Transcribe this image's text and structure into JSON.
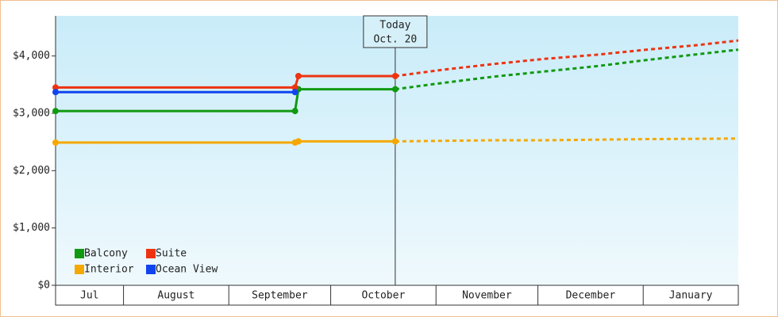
{
  "chart_data": {
    "type": "line",
    "x": [
      11,
      81.5,
      82.5,
      111,
      125,
      140,
      155,
      170,
      185,
      200,
      212
    ],
    "xlim": [
      11,
      212
    ],
    "xticks": [
      31,
      62,
      92,
      123,
      153,
      184
    ],
    "categories": [
      "Jul",
      "August",
      "September",
      "October",
      "November",
      "December",
      "January"
    ],
    "ylim": [
      0,
      4700
    ],
    "yticks": [
      {
        "value": 0,
        "label": "$0"
      },
      {
        "value": 1000,
        "label": "$1,000"
      },
      {
        "value": 2000,
        "label": "$2,000"
      },
      {
        "value": 3000,
        "label": "$3,000"
      },
      {
        "value": 4000,
        "label": "$4,000"
      }
    ],
    "today": 111,
    "annotation": [
      "Today",
      "Oct. 20"
    ],
    "series": [
      {
        "name": "Balcony",
        "color": "#119911",
        "values": [
          3040,
          3040,
          3420,
          3420,
          3530,
          3640,
          3730,
          3820,
          3930,
          4030,
          4110
        ]
      },
      {
        "name": "Suite",
        "color": "#ee3311",
        "values": [
          3450,
          3450,
          3650,
          3650,
          3760,
          3860,
          3950,
          4020,
          4110,
          4190,
          4270
        ]
      },
      {
        "name": "Interior",
        "color": "#f5a800",
        "values": [
          2490,
          2490,
          2510,
          2510,
          2520,
          2530,
          2530,
          2540,
          2550,
          2555,
          2560
        ]
      },
      {
        "name": "Ocean View",
        "color": "#1144ee",
        "values": [
          3370,
          3370,
          null,
          null,
          null,
          null,
          null,
          null,
          null,
          null,
          null
        ]
      }
    ]
  }
}
